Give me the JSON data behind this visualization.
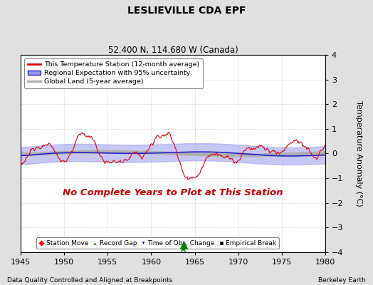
{
  "title": "LESLIEVILLE CDA EPF",
  "subtitle": "52.400 N, 114.680 W (Canada)",
  "xlabel_left": "Data Quality Controlled and Aligned at Breakpoints",
  "xlabel_right": "Berkeley Earth",
  "ylabel": "Temperature Anomaly (°C)",
  "xlim": [
    1945,
    1980
  ],
  "ylim": [
    -4,
    4
  ],
  "yticks": [
    -4,
    -3,
    -2,
    -1,
    0,
    1,
    2,
    3,
    4
  ],
  "xticks": [
    1945,
    1950,
    1955,
    1960,
    1965,
    1970,
    1975,
    1980
  ],
  "no_data_text": "No Complete Years to Plot at This Station",
  "no_data_color": "#cc0000",
  "background_color": "#e0e0e0",
  "plot_bg_color": "#ffffff",
  "regional_fill_color": "#9999ee",
  "regional_line_color": "#2222cc",
  "station_line_color": "#dd0000",
  "global_line_color": "#b0b0b0",
  "record_gap_x": 1963.7,
  "record_gap_y": -3.7,
  "legend_items": [
    {
      "label": "This Temperature Station (12-month average)",
      "color": "#dd0000",
      "lw": 1.5
    },
    {
      "label": "Regional Expectation with 95% uncertainty",
      "color": "#2222cc",
      "lw": 1.5
    },
    {
      "label": "Global Land (5-year average)",
      "color": "#b0b0b0",
      "lw": 2.5
    }
  ]
}
